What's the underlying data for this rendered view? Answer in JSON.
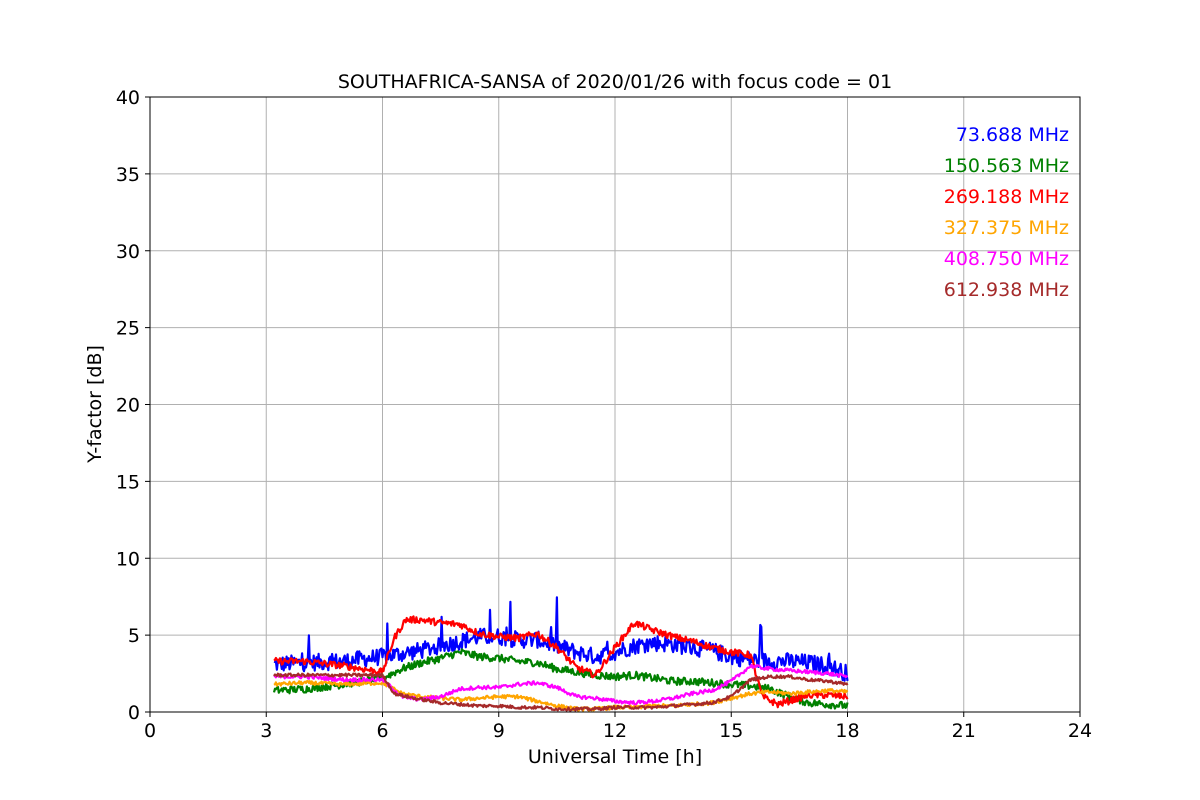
{
  "chart_data": {
    "type": "line",
    "title": "SOUTHAFRICA-SANSA of 2020/01/26 with focus code = 01",
    "xlabel": "Universal Time [h]",
    "ylabel": "Y-factor [dB]",
    "xlim": [
      0,
      24
    ],
    "ylim": [
      0,
      40
    ],
    "xticks": [
      "0",
      "3",
      "6",
      "9",
      "12",
      "15",
      "18",
      "21",
      "24"
    ],
    "yticks": [
      "0",
      "5",
      "10",
      "15",
      "20",
      "25",
      "30",
      "35",
      "40"
    ],
    "grid": true,
    "legend_position": "top-right",
    "series": [
      {
        "name": "73.688 MHz",
        "color": "#0000ff",
        "noise": 0.55,
        "points": [
          [
            3.2,
            3.1
          ],
          [
            4.0,
            3.2
          ],
          [
            5.0,
            3.3
          ],
          [
            6.0,
            3.6
          ],
          [
            6.5,
            3.8
          ],
          [
            7.0,
            4.0
          ],
          [
            7.5,
            4.3
          ],
          [
            8.0,
            4.6
          ],
          [
            8.5,
            4.9
          ],
          [
            9.0,
            4.9
          ],
          [
            9.5,
            4.7
          ],
          [
            10.0,
            4.7
          ],
          [
            10.5,
            4.3
          ],
          [
            11.0,
            3.9
          ],
          [
            11.5,
            3.6
          ],
          [
            12.0,
            3.9
          ],
          [
            12.5,
            4.3
          ],
          [
            13.0,
            4.5
          ],
          [
            13.5,
            4.4
          ],
          [
            14.0,
            4.2
          ],
          [
            14.5,
            4.0
          ],
          [
            15.0,
            3.6
          ],
          [
            15.5,
            3.4
          ],
          [
            16.0,
            3.3
          ],
          [
            16.5,
            3.3
          ],
          [
            17.0,
            3.2
          ],
          [
            17.5,
            3.0
          ],
          [
            18.0,
            2.5
          ]
        ]
      },
      {
        "name": "150.563 MHz",
        "color": "#008000",
        "noise": 0.25,
        "points": [
          [
            3.2,
            1.4
          ],
          [
            4.0,
            1.5
          ],
          [
            5.0,
            1.8
          ],
          [
            6.0,
            2.2
          ],
          [
            6.5,
            2.8
          ],
          [
            7.0,
            3.2
          ],
          [
            7.5,
            3.5
          ],
          [
            8.0,
            3.9
          ],
          [
            8.5,
            3.6
          ],
          [
            9.0,
            3.5
          ],
          [
            9.5,
            3.3
          ],
          [
            10.0,
            3.2
          ],
          [
            10.5,
            2.8
          ],
          [
            11.0,
            2.6
          ],
          [
            11.5,
            2.4
          ],
          [
            12.0,
            2.3
          ],
          [
            12.5,
            2.4
          ],
          [
            13.0,
            2.2
          ],
          [
            13.5,
            2.0
          ],
          [
            14.0,
            2.0
          ],
          [
            14.5,
            1.9
          ],
          [
            15.0,
            1.8
          ],
          [
            15.5,
            1.7
          ],
          [
            16.0,
            1.5
          ],
          [
            16.5,
            1.0
          ],
          [
            17.0,
            0.6
          ],
          [
            17.5,
            0.5
          ],
          [
            18.0,
            0.4
          ]
        ]
      },
      {
        "name": "269.188 MHz",
        "color": "#ff0000",
        "noise": 0.22,
        "points": [
          [
            3.2,
            3.3
          ],
          [
            4.0,
            3.3
          ],
          [
            5.0,
            3.0
          ],
          [
            5.5,
            2.8
          ],
          [
            6.0,
            2.6
          ],
          [
            6.3,
            4.8
          ],
          [
            6.6,
            6.0
          ],
          [
            7.0,
            6.0
          ],
          [
            7.5,
            5.8
          ],
          [
            8.0,
            5.7
          ],
          [
            8.5,
            5.1
          ],
          [
            9.0,
            4.9
          ],
          [
            9.5,
            4.8
          ],
          [
            10.0,
            5.1
          ],
          [
            10.5,
            4.2
          ],
          [
            11.0,
            2.9
          ],
          [
            11.5,
            2.4
          ],
          [
            12.0,
            4.2
          ],
          [
            12.5,
            5.8
          ],
          [
            13.0,
            5.3
          ],
          [
            13.5,
            4.9
          ],
          [
            14.0,
            4.6
          ],
          [
            14.5,
            4.2
          ],
          [
            15.0,
            3.9
          ],
          [
            15.5,
            3.7
          ],
          [
            15.8,
            1.0
          ],
          [
            16.2,
            0.5
          ],
          [
            16.6,
            0.8
          ],
          [
            17.0,
            1.1
          ],
          [
            17.5,
            1.1
          ],
          [
            18.0,
            1.0
          ]
        ]
      },
      {
        "name": "327.375 MHz",
        "color": "#ffa500",
        "noise": 0.12,
        "points": [
          [
            3.2,
            1.8
          ],
          [
            4.0,
            1.9
          ],
          [
            5.0,
            1.8
          ],
          [
            6.0,
            1.9
          ],
          [
            6.5,
            1.2
          ],
          [
            7.0,
            1.0
          ],
          [
            7.5,
            0.9
          ],
          [
            8.0,
            0.8
          ],
          [
            8.5,
            0.9
          ],
          [
            9.0,
            1.0
          ],
          [
            9.5,
            1.0
          ],
          [
            10.0,
            0.7
          ],
          [
            10.5,
            0.4
          ],
          [
            11.0,
            0.2
          ],
          [
            11.5,
            0.2
          ],
          [
            12.0,
            0.3
          ],
          [
            12.5,
            0.3
          ],
          [
            13.0,
            0.4
          ],
          [
            13.5,
            0.4
          ],
          [
            14.0,
            0.5
          ],
          [
            14.5,
            0.6
          ],
          [
            15.0,
            0.9
          ],
          [
            15.5,
            1.2
          ],
          [
            16.0,
            1.3
          ],
          [
            16.5,
            1.2
          ],
          [
            17.0,
            1.3
          ],
          [
            17.5,
            1.4
          ],
          [
            18.0,
            1.3
          ]
        ]
      },
      {
        "name": "408.750 MHz",
        "color": "#ff00ff",
        "noise": 0.12,
        "points": [
          [
            3.2,
            2.3
          ],
          [
            4.0,
            2.3
          ],
          [
            5.0,
            2.1
          ],
          [
            6.0,
            2.1
          ],
          [
            6.5,
            1.0
          ],
          [
            7.0,
            0.8
          ],
          [
            7.5,
            1.0
          ],
          [
            8.0,
            1.5
          ],
          [
            8.5,
            1.6
          ],
          [
            9.0,
            1.6
          ],
          [
            9.5,
            1.8
          ],
          [
            10.0,
            1.9
          ],
          [
            10.5,
            1.6
          ],
          [
            11.0,
            1.0
          ],
          [
            11.5,
            0.9
          ],
          [
            12.0,
            0.7
          ],
          [
            12.5,
            0.6
          ],
          [
            13.0,
            0.7
          ],
          [
            13.5,
            0.9
          ],
          [
            14.0,
            1.2
          ],
          [
            14.5,
            1.4
          ],
          [
            15.0,
            2.0
          ],
          [
            15.5,
            3.0
          ],
          [
            16.0,
            2.8
          ],
          [
            16.5,
            2.7
          ],
          [
            17.0,
            2.6
          ],
          [
            17.5,
            2.5
          ],
          [
            18.0,
            2.3
          ]
        ]
      },
      {
        "name": "612.938 MHz",
        "color": "#a52a2a",
        "noise": 0.1,
        "points": [
          [
            3.2,
            2.4
          ],
          [
            4.0,
            2.4
          ],
          [
            5.0,
            2.4
          ],
          [
            6.0,
            2.4
          ],
          [
            6.3,
            1.2
          ],
          [
            6.8,
            0.9
          ],
          [
            7.5,
            0.6
          ],
          [
            8.0,
            0.5
          ],
          [
            8.5,
            0.4
          ],
          [
            9.0,
            0.4
          ],
          [
            9.5,
            0.3
          ],
          [
            10.0,
            0.3
          ],
          [
            10.5,
            0.2
          ],
          [
            11.0,
            0.2
          ],
          [
            11.5,
            0.2
          ],
          [
            12.0,
            0.3
          ],
          [
            12.5,
            0.3
          ],
          [
            13.0,
            0.3
          ],
          [
            13.5,
            0.4
          ],
          [
            14.0,
            0.5
          ],
          [
            14.5,
            0.6
          ],
          [
            15.0,
            1.0
          ],
          [
            15.5,
            2.1
          ],
          [
            16.0,
            2.3
          ],
          [
            16.5,
            2.3
          ],
          [
            17.0,
            2.1
          ],
          [
            17.5,
            2.0
          ],
          [
            18.0,
            1.8
          ]
        ]
      }
    ]
  }
}
